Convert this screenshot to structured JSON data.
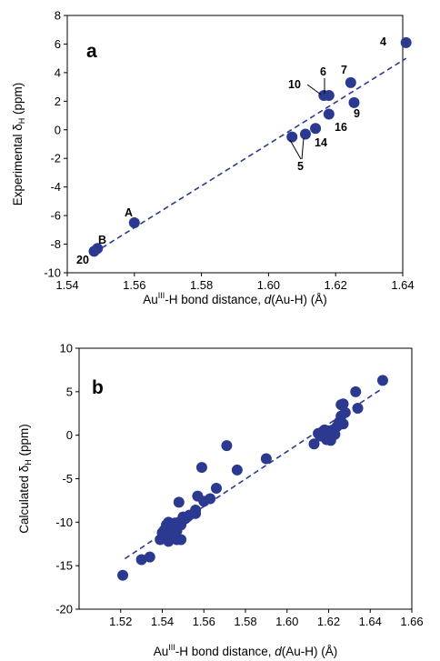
{
  "chart_data": [
    {
      "type": "scatter",
      "panel_label": "a",
      "xlabel": {
        "pre": "Au",
        "sup": "III",
        "post": "-H bond distance, ",
        "italic": "d",
        "post2": "(Au-H) (Å)"
      },
      "ylabel": {
        "pre": "Experimental δ",
        "sub": "H",
        "post": " (ppm)"
      },
      "xlim": [
        1.54,
        1.64
      ],
      "ylim": [
        -10,
        8
      ],
      "xticks": [
        1.54,
        1.56,
        1.58,
        1.6,
        1.62,
        1.64
      ],
      "xtick_labels": [
        "1.54",
        "1.56",
        "1.58",
        "1.60",
        "1.62",
        "1.64"
      ],
      "yticks": [
        -10,
        -8,
        -6,
        -4,
        -2,
        0,
        2,
        4,
        6,
        8
      ],
      "ytick_labels": [
        "-10",
        "-8",
        "-6",
        "-4",
        "-2",
        "0",
        "2",
        "4",
        "6",
        "8"
      ],
      "grid": false,
      "marker_color": "#2b3990",
      "series": [
        {
          "x": [
            1.548,
            1.549,
            1.56,
            1.607,
            1.611,
            1.614,
            1.6165,
            1.618,
            1.618,
            1.6245,
            1.6255,
            1.641
          ],
          "y": [
            -8.5,
            -8.3,
            -6.5,
            -0.5,
            -0.3,
            0.1,
            2.4,
            2.4,
            1.1,
            3.3,
            1.9,
            6.1
          ]
        }
      ],
      "fit_line": {
        "x": [
          1.548,
          1.641
        ],
        "y": [
          -8.6,
          5.0
        ]
      },
      "point_labels": [
        "20",
        "B",
        "A",
        "10",
        "6",
        "7",
        "4",
        "9",
        "16",
        "14",
        "5"
      ]
    },
    {
      "type": "scatter",
      "panel_label": "b",
      "xlabel": {
        "pre": "Au",
        "sup": "III",
        "post": "-H bond distance, ",
        "italic": "d",
        "post2": "(Au-H) (Å)"
      },
      "ylabel": {
        "pre": "Calculated δ",
        "sub": "H",
        "post": " (ppm)"
      },
      "xlim": [
        1.5,
        1.66
      ],
      "ylim": [
        -20,
        10
      ],
      "xticks": [
        1.52,
        1.54,
        1.56,
        1.58,
        1.6,
        1.62,
        1.64,
        1.66
      ],
      "xtick_labels": [
        "1.52",
        "1.54",
        "1.56",
        "1.58",
        "1.60",
        "1.62",
        "1.64",
        "1.66"
      ],
      "yticks": [
        -20,
        -15,
        -10,
        -5,
        0,
        5,
        10
      ],
      "ytick_labels": [
        "-20",
        "-15",
        "-10",
        "-5",
        "0",
        "5",
        "10"
      ],
      "grid": false,
      "marker_color": "#2b3990",
      "series": [
        {
          "x": [
            1.521,
            1.53,
            1.534,
            1.539,
            1.54,
            1.541,
            1.542,
            1.542,
            1.543,
            1.543,
            1.544,
            1.544,
            1.545,
            1.545,
            1.546,
            1.546,
            1.547,
            1.547,
            1.548,
            1.548,
            1.549,
            1.549,
            1.55,
            1.551,
            1.552,
            1.553,
            1.556,
            1.556,
            1.557,
            1.559,
            1.56,
            1.563,
            1.566,
            1.571,
            1.576,
            1.59,
            1.613,
            1.615,
            1.616,
            1.617,
            1.618,
            1.619,
            1.619,
            1.62,
            1.621,
            1.622,
            1.623,
            1.624,
            1.625,
            1.626,
            1.626,
            1.627,
            1.627,
            1.628,
            1.633,
            1.634,
            1.646
          ],
          "y": [
            -16.1,
            -14.3,
            -14.0,
            -12.0,
            -11.2,
            -10.9,
            -10.3,
            -11.5,
            -12.2,
            -10.0,
            -10.6,
            -11.3,
            -10.5,
            -11.1,
            -11.6,
            -10.1,
            -12.0,
            -11.0,
            -10.0,
            -7.7,
            -12.0,
            -10.3,
            -9.4,
            -9.6,
            -9.4,
            -9.2,
            -9.0,
            -8.6,
            -7.0,
            -3.7,
            -7.6,
            -7.3,
            -6.1,
            -1.2,
            -4.0,
            -2.7,
            -1.0,
            0.2,
            -0.1,
            0.4,
            0.6,
            -0.5,
            0.2,
            0.5,
            -0.6,
            0.6,
            0.1,
            1.0,
            1.5,
            2.2,
            3.5,
            1.3,
            3.6,
            2.6,
            5.0,
            3.1,
            6.3
          ]
        }
      ],
      "fit_line": {
        "x": [
          1.522,
          1.646
        ],
        "y": [
          -14.2,
          5.4
        ]
      }
    }
  ]
}
